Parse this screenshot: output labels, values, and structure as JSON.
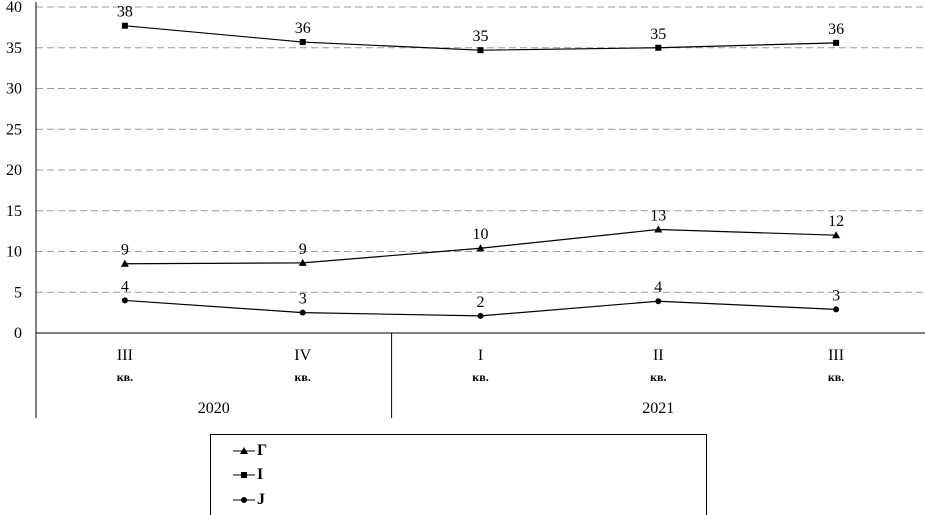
{
  "chart_data": {
    "type": "line",
    "categories": [
      {
        "q": "III",
        "sub": "кв."
      },
      {
        "q": "IV",
        "sub": "кв."
      },
      {
        "q": "I",
        "sub": "кв."
      },
      {
        "q": "II",
        "sub": "кв."
      },
      {
        "q": "III",
        "sub": "кв."
      }
    ],
    "years": [
      {
        "label": "2020",
        "span": [
          0,
          1
        ]
      },
      {
        "label": "2021",
        "span": [
          2,
          4
        ]
      }
    ],
    "ylim": [
      0,
      40
    ],
    "yticks": [
      "0",
      "5",
      "10",
      "15",
      "20",
      "25",
      "30",
      "35",
      "40"
    ],
    "grid": true,
    "series": [
      {
        "marker": "square",
        "values": [
          37.7,
          35.7,
          34.7,
          35.0,
          35.6
        ],
        "labels": [
          "38",
          "36",
          "35",
          "35",
          "36"
        ]
      },
      {
        "marker": "triangle",
        "values": [
          8.5,
          8.6,
          10.4,
          12.7,
          12.0
        ],
        "labels": [
          "9",
          "9",
          "10",
          "13",
          "12"
        ]
      },
      {
        "marker": "circle",
        "values": [
          4.0,
          2.5,
          2.1,
          3.9,
          2.9
        ],
        "labels": [
          "4",
          "3",
          "2",
          "4",
          "3"
        ]
      }
    ],
    "legend": {
      "position": "bottom",
      "items": [
        {
          "marker": "triangle",
          "text": "Г"
        },
        {
          "marker": "square",
          "text": "I"
        },
        {
          "marker": "circle",
          "text": "Ј"
        }
      ]
    }
  }
}
